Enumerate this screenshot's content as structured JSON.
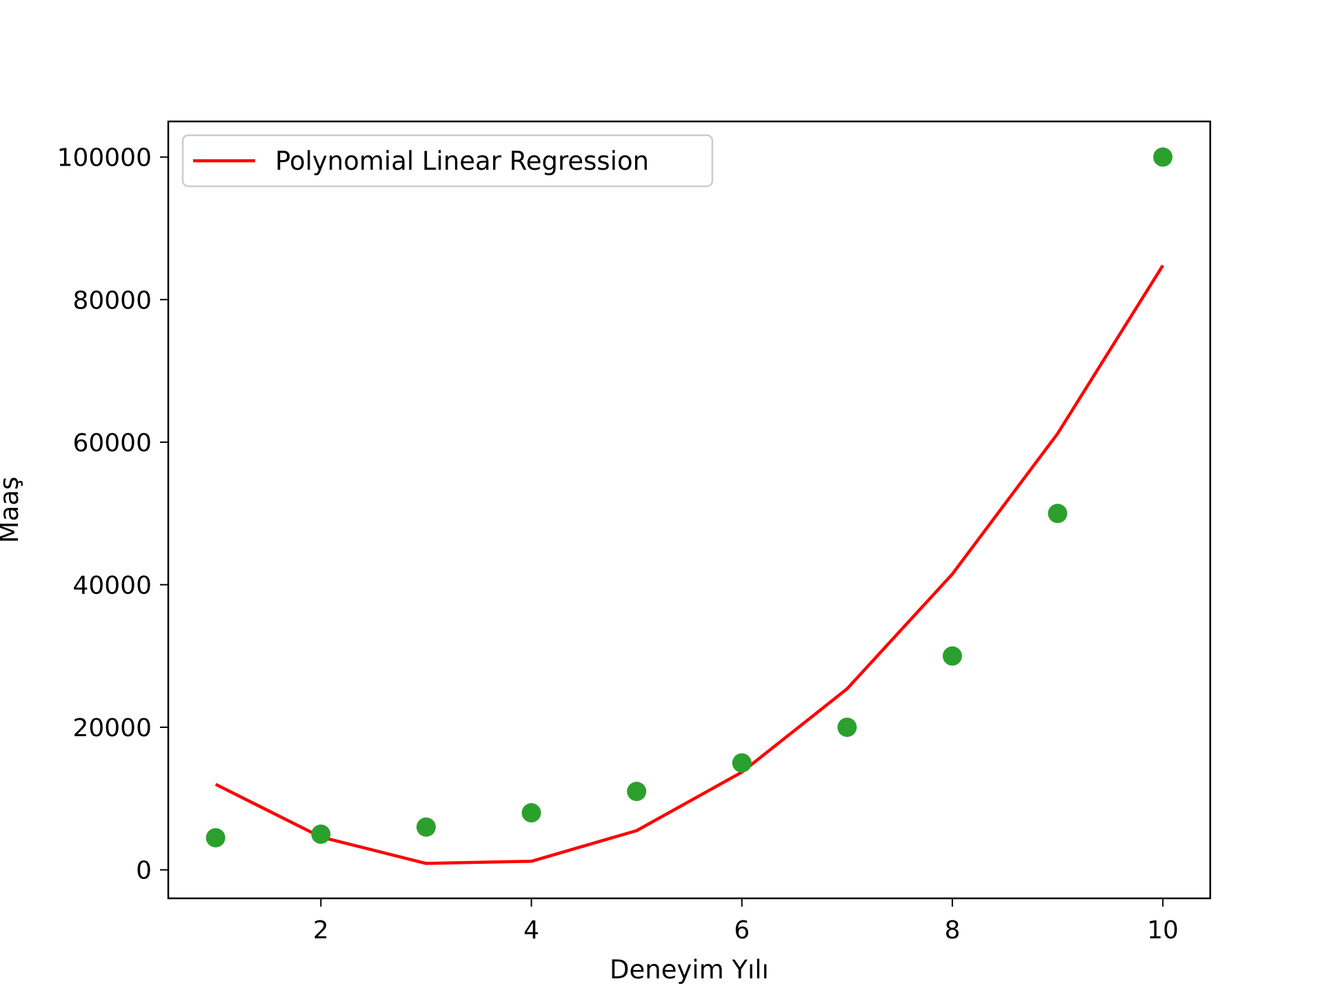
{
  "chart_data": {
    "type": "scatter",
    "title": "",
    "xlabel": "Deneyim Yılı",
    "ylabel": "Maaş",
    "xlim": [
      0.55,
      10.45
    ],
    "ylim": [
      -4000,
      105000
    ],
    "xticks": [
      2,
      4,
      6,
      8,
      10
    ],
    "yticks": [
      0,
      20000,
      40000,
      60000,
      80000,
      100000
    ],
    "grid": false,
    "legend_position": "upper-left",
    "series": [
      {
        "kind": "scatter",
        "color": "#2ca02c",
        "x": [
          1,
          2,
          3,
          4,
          5,
          6,
          7,
          8,
          9,
          10
        ],
        "y": [
          4500,
          5000,
          6000,
          8000,
          11000,
          15000,
          20000,
          30000,
          50000,
          100000
        ]
      },
      {
        "kind": "line",
        "name": "Polynomial Linear Regression",
        "color": "#ff0000",
        "x": [
          1,
          2,
          3,
          4,
          5,
          6,
          7,
          8,
          9,
          10
        ],
        "y": [
          12000,
          4600,
          900,
          1200,
          5500,
          13700,
          25400,
          41500,
          61200,
          84800
        ]
      }
    ]
  }
}
